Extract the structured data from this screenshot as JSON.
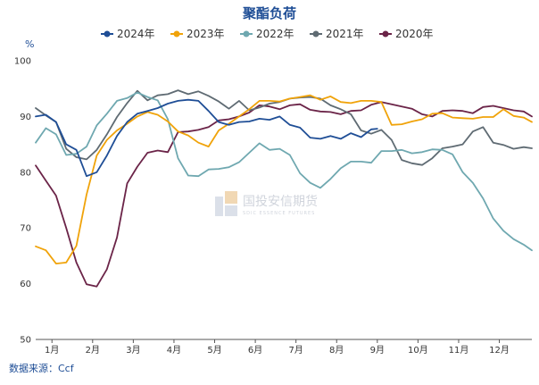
{
  "chart_data": {
    "type": "line",
    "title": "聚酯负荷",
    "ylabel": "%",
    "ylim": [
      50,
      100
    ],
    "yticks": [
      50,
      60,
      70,
      80,
      90,
      100
    ],
    "xlim": [
      0.6,
      12.8
    ],
    "xticks": [
      "1月",
      "2月",
      "3月",
      "4月",
      "5月",
      "6月",
      "7月",
      "8月",
      "9月",
      "10月",
      "11月",
      "12月"
    ],
    "legend_position": "top",
    "grid": false,
    "source": "数据来源：Ccf",
    "watermark": {
      "text": "国投安信期货",
      "sub": "SDIC ESSENCE FUTURES"
    },
    "series": [
      {
        "name": "2024年",
        "color": "#1f4e96",
        "x": [
          0.6,
          0.85,
          1.1,
          1.35,
          1.6,
          1.85,
          2.1,
          2.35,
          2.6,
          2.85,
          3.1,
          3.35,
          3.6,
          3.85,
          4.1,
          4.35,
          4.6,
          4.85,
          5.1,
          5.35,
          5.6,
          5.85,
          6.1,
          6.35,
          6.6,
          6.85,
          7.1,
          7.35,
          7.6,
          7.85,
          8.1,
          8.35,
          8.6,
          8.85,
          9.0
        ],
        "y": [
          90,
          90.3,
          89,
          85,
          84,
          79.3,
          80,
          83,
          86.5,
          89,
          90.5,
          91,
          91.5,
          92.3,
          92.8,
          93,
          92.8,
          91,
          89,
          88.5,
          89,
          89.1,
          89.6,
          89.4,
          90,
          88.5,
          88,
          86.2,
          86,
          86.5,
          86,
          87,
          86.3,
          87.7,
          87.8
        ]
      },
      {
        "name": "2023年",
        "color": "#f0a30a",
        "x": [
          0.6,
          0.85,
          1.1,
          1.35,
          1.6,
          1.85,
          2.1,
          2.35,
          2.6,
          2.85,
          3.1,
          3.35,
          3.6,
          3.85,
          4.1,
          4.35,
          4.6,
          4.85,
          5.1,
          5.35,
          5.6,
          5.85,
          6.1,
          6.35,
          6.6,
          6.85,
          7.1,
          7.35,
          7.6,
          7.85,
          8.1,
          8.35,
          8.6,
          8.85,
          9.1,
          9.35,
          9.6,
          9.85,
          10.1,
          10.35,
          10.6,
          10.85,
          11.1,
          11.35,
          11.6,
          11.85,
          12.1,
          12.35,
          12.6,
          12.8
        ],
        "y": [
          66.7,
          66,
          63.6,
          63.8,
          66.8,
          76,
          83,
          85.8,
          87.5,
          88.7,
          90,
          90.8,
          90.3,
          89.1,
          87.3,
          86.6,
          85.3,
          84.6,
          87.5,
          88.7,
          90,
          91.3,
          92.8,
          92.8,
          92.7,
          93.2,
          93.5,
          93.8,
          93,
          93.6,
          92.6,
          92.4,
          92.8,
          92.8,
          92.6,
          88.5,
          88.6,
          89.1,
          89.5,
          90.5,
          90.6,
          89.8,
          89.7,
          89.6,
          89.9,
          89.9,
          91.3,
          90.1,
          89.8,
          89
        ]
      },
      {
        "name": "2022年",
        "color": "#6fa8b0",
        "x": [
          0.6,
          0.85,
          1.1,
          1.35,
          1.6,
          1.85,
          2.1,
          2.35,
          2.6,
          2.85,
          3.1,
          3.35,
          3.6,
          3.85,
          4.1,
          4.35,
          4.6,
          4.85,
          5.1,
          5.35,
          5.6,
          5.85,
          6.1,
          6.35,
          6.6,
          6.85,
          7.1,
          7.35,
          7.6,
          7.85,
          8.1,
          8.35,
          8.6,
          8.85,
          9.1,
          9.35,
          9.6,
          9.85,
          10.1,
          10.35,
          10.6,
          10.85,
          11.1,
          11.35,
          11.6,
          11.85,
          12.1,
          12.35,
          12.6,
          12.8
        ],
        "y": [
          85.3,
          87.9,
          86.8,
          83.1,
          83.3,
          84.6,
          88.4,
          90.5,
          92.8,
          93.3,
          94.3,
          93.5,
          92.9,
          89.5,
          82.5,
          79.4,
          79.3,
          80.5,
          80.6,
          80.9,
          81.8,
          83.5,
          85.2,
          84,
          84.2,
          83.1,
          79.8,
          78.1,
          77.2,
          78.8,
          80.7,
          81.9,
          81.9,
          81.7,
          83.8,
          83.8,
          84,
          83.4,
          83.6,
          84.1,
          84,
          83.2,
          80,
          78.1,
          75.3,
          71.7,
          69.5,
          68,
          67,
          66
        ]
      },
      {
        "name": "2021年",
        "color": "#5f6b73",
        "x": [
          0.6,
          0.85,
          1.1,
          1.35,
          1.6,
          1.85,
          2.1,
          2.35,
          2.6,
          2.85,
          3.1,
          3.35,
          3.6,
          3.85,
          4.1,
          4.35,
          4.6,
          4.85,
          5.1,
          5.35,
          5.6,
          5.85,
          6.1,
          6.35,
          6.6,
          6.85,
          7.1,
          7.35,
          7.6,
          7.85,
          8.1,
          8.35,
          8.6,
          8.85,
          9.1,
          9.35,
          9.6,
          9.85,
          10.1,
          10.35,
          10.6,
          10.85,
          11.1,
          11.35,
          11.6,
          11.85,
          12.1,
          12.35,
          12.6,
          12.8
        ],
        "y": [
          91.5,
          90.2,
          89,
          84.2,
          82.7,
          82.3,
          84,
          86.8,
          89.9,
          92.4,
          94.6,
          92.9,
          93.8,
          94,
          94.7,
          94,
          94.5,
          93.7,
          92.7,
          91.4,
          92.8,
          91.1,
          91.6,
          92.3,
          92.6,
          93.2,
          93.4,
          93.5,
          93.2,
          92,
          91.3,
          90.4,
          87.5,
          86.9,
          87.6,
          85.8,
          82.2,
          81.6,
          81.3,
          82.5,
          84.3,
          84.6,
          85,
          87.3,
          88.1,
          85.3,
          84.9,
          84.2,
          84.5,
          84.3
        ]
      },
      {
        "name": "2020年",
        "color": "#6b2448",
        "x": [
          0.6,
          0.85,
          1.1,
          1.35,
          1.6,
          1.85,
          2.1,
          2.35,
          2.6,
          2.85,
          3.1,
          3.35,
          3.6,
          3.85,
          4.1,
          4.35,
          4.6,
          4.85,
          5.1,
          5.35,
          5.6,
          5.85,
          6.1,
          6.35,
          6.6,
          6.85,
          7.1,
          7.35,
          7.6,
          7.85,
          8.1,
          8.35,
          8.6,
          8.85,
          9.1,
          9.35,
          9.6,
          9.85,
          10.1,
          10.35,
          10.6,
          10.85,
          11.1,
          11.35,
          11.6,
          11.85,
          12.1,
          12.35,
          12.6,
          12.8
        ],
        "y": [
          81.2,
          78.5,
          75.8,
          70,
          63.8,
          59.9,
          59.5,
          62.6,
          68.3,
          78,
          81,
          83.5,
          83.9,
          83.6,
          87.2,
          87.3,
          87.6,
          88.1,
          89.3,
          89.5,
          90,
          90.7,
          92,
          91.8,
          91.3,
          92,
          92.2,
          91.2,
          90.9,
          90.8,
          90.4,
          91,
          91.1,
          92.1,
          92.6,
          92.2,
          91.8,
          91.4,
          90.4,
          90,
          91,
          91.1,
          91,
          90.6,
          91.7,
          91.9,
          91.5,
          91.1,
          90.9,
          90
        ]
      }
    ]
  }
}
